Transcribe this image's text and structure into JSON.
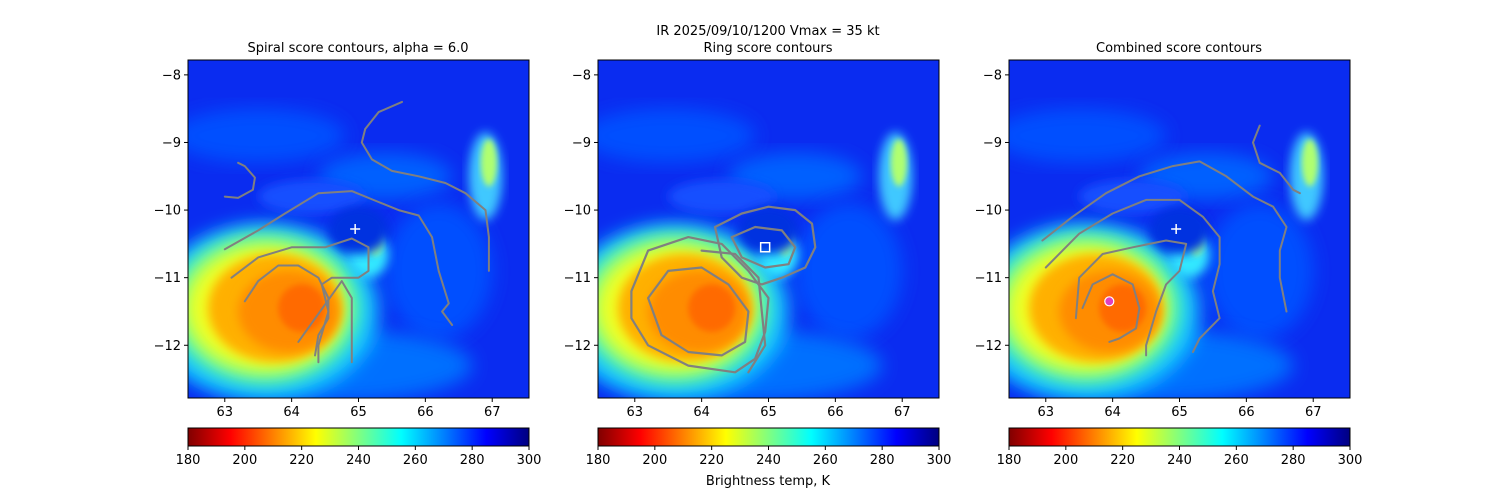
{
  "suptitle": {
    "line1": "IR  2025/09/10/1200    Vmax = 35 kt",
    "line2": "Ring score contours"
  },
  "colorbar": {
    "label": "Brightness temp, K",
    "ticks": [
      180,
      200,
      220,
      240,
      260,
      280,
      300
    ],
    "range": [
      180,
      300
    ],
    "colormap": "jet_r",
    "colors": [
      "#800000",
      "#ff0000",
      "#ff8000",
      "#ffff00",
      "#80ff80",
      "#00ffff",
      "#0080ff",
      "#0000ff",
      "#000080"
    ]
  },
  "contour_color": "#808080",
  "chart_data": [
    {
      "type": "heatmap",
      "title": "Spiral score contours, alpha =  6.0",
      "x_ticks": [
        63,
        64,
        65,
        66,
        67
      ],
      "y_ticks": [
        -8,
        -9,
        -10,
        -11,
        -12
      ],
      "xlim": [
        62.45,
        67.55
      ],
      "ylim": [
        -12.78,
        -7.78
      ],
      "marker": {
        "type": "cross",
        "x": 64.95,
        "y": -10.28,
        "color": "#ffffff"
      },
      "contours": [
        [
          [
            63.0,
            -9.8
          ],
          [
            63.2,
            -9.82
          ],
          [
            63.42,
            -9.7
          ],
          [
            63.45,
            -9.52
          ],
          [
            63.3,
            -9.35
          ],
          [
            63.2,
            -9.3
          ]
        ],
        [
          [
            63.0,
            -10.58
          ],
          [
            63.5,
            -10.3
          ],
          [
            63.9,
            -10.05
          ],
          [
            64.4,
            -9.75
          ],
          [
            64.9,
            -9.72
          ],
          [
            65.3,
            -9.88
          ],
          [
            65.6,
            -10.0
          ],
          [
            65.9,
            -10.08
          ],
          [
            66.1,
            -10.4
          ],
          [
            66.2,
            -10.9
          ],
          [
            66.35,
            -11.38
          ],
          [
            66.25,
            -11.5
          ],
          [
            66.4,
            -11.7
          ]
        ],
        [
          [
            63.1,
            -11.0
          ],
          [
            63.5,
            -10.7
          ],
          [
            64.0,
            -10.55
          ],
          [
            64.5,
            -10.55
          ],
          [
            64.9,
            -10.42
          ],
          [
            65.15,
            -10.55
          ],
          [
            65.15,
            -10.9
          ],
          [
            65.0,
            -11.0
          ],
          [
            64.6,
            -11.0
          ],
          [
            64.45,
            -11.1
          ],
          [
            64.55,
            -11.5
          ],
          [
            64.4,
            -12.0
          ],
          [
            64.4,
            -12.25
          ]
        ],
        [
          [
            63.3,
            -11.35
          ],
          [
            63.5,
            -11.05
          ],
          [
            63.8,
            -10.82
          ],
          [
            64.1,
            -10.82
          ],
          [
            64.4,
            -11.0
          ],
          [
            64.55,
            -11.3
          ],
          [
            64.55,
            -11.6
          ],
          [
            64.4,
            -11.85
          ],
          [
            64.35,
            -12.15
          ]
        ],
        [
          [
            65.65,
            -8.4
          ],
          [
            65.3,
            -8.55
          ],
          [
            65.1,
            -8.8
          ],
          [
            65.05,
            -9.0
          ],
          [
            65.2,
            -9.25
          ],
          [
            65.5,
            -9.42
          ],
          [
            65.9,
            -9.5
          ],
          [
            66.3,
            -9.6
          ],
          [
            66.6,
            -9.75
          ],
          [
            66.9,
            -10.0
          ],
          [
            66.95,
            -10.4
          ],
          [
            66.95,
            -10.9
          ]
        ],
        [
          [
            64.1,
            -11.95
          ],
          [
            64.75,
            -11.05
          ],
          [
            64.9,
            -11.3
          ],
          [
            64.9,
            -12.0
          ],
          [
            64.9,
            -12.25
          ]
        ]
      ]
    },
    {
      "type": "heatmap",
      "title": "",
      "x_ticks": [
        63,
        64,
        65,
        66,
        67
      ],
      "y_ticks": [
        -8,
        -9,
        -10,
        -11,
        -12
      ],
      "xlim": [
        62.45,
        67.55
      ],
      "ylim": [
        -12.78,
        -7.78
      ],
      "marker": {
        "type": "square",
        "x": 64.95,
        "y": -10.55,
        "color": "#ffffff"
      },
      "contours": [
        [
          [
            64.2,
            -10.25
          ],
          [
            64.6,
            -10.05
          ],
          [
            65.0,
            -9.95
          ],
          [
            65.4,
            -10.0
          ],
          [
            65.65,
            -10.2
          ],
          [
            65.7,
            -10.55
          ],
          [
            65.55,
            -10.85
          ],
          [
            65.2,
            -11.0
          ],
          [
            64.9,
            -11.1
          ],
          [
            64.6,
            -11.0
          ],
          [
            64.3,
            -10.7
          ],
          [
            64.2,
            -10.25
          ]
        ],
        [
          [
            64.45,
            -10.4
          ],
          [
            64.8,
            -10.25
          ],
          [
            65.2,
            -10.3
          ],
          [
            65.4,
            -10.55
          ],
          [
            65.3,
            -10.8
          ],
          [
            64.95,
            -10.85
          ],
          [
            64.6,
            -10.7
          ],
          [
            64.45,
            -10.4
          ]
        ],
        [
          [
            62.95,
            -11.2
          ],
          [
            63.2,
            -10.6
          ],
          [
            63.8,
            -10.4
          ],
          [
            64.3,
            -10.5
          ],
          [
            64.7,
            -10.9
          ],
          [
            65.0,
            -11.3
          ],
          [
            64.95,
            -11.8
          ],
          [
            64.8,
            -12.2
          ],
          [
            64.5,
            -12.4
          ],
          [
            63.8,
            -12.3
          ],
          [
            63.2,
            -12.0
          ],
          [
            62.95,
            -11.6
          ],
          [
            62.95,
            -11.2
          ]
        ],
        [
          [
            63.2,
            -11.3
          ],
          [
            63.5,
            -10.9
          ],
          [
            64.0,
            -10.85
          ],
          [
            64.4,
            -11.1
          ],
          [
            64.7,
            -11.5
          ],
          [
            64.65,
            -11.95
          ],
          [
            64.3,
            -12.15
          ],
          [
            63.8,
            -12.1
          ],
          [
            63.4,
            -11.85
          ],
          [
            63.2,
            -11.3
          ]
        ],
        [
          [
            64.0,
            -10.6
          ],
          [
            64.5,
            -10.65
          ],
          [
            64.85,
            -11.0
          ],
          [
            64.9,
            -11.5
          ],
          [
            64.95,
            -12.0
          ],
          [
            64.7,
            -12.4
          ]
        ]
      ]
    },
    {
      "type": "heatmap",
      "title": "Combined score contours",
      "x_ticks": [
        63,
        64,
        65,
        66,
        67
      ],
      "y_ticks": [
        -8,
        -9,
        -10,
        -11,
        -12
      ],
      "xlim": [
        62.45,
        67.55
      ],
      "ylim": [
        -12.78,
        -7.78
      ],
      "marker": {
        "type": "cross",
        "x": 64.95,
        "y": -10.28,
        "color": "#ffffff"
      },
      "marker2": {
        "type": "circle",
        "x": 63.95,
        "y": -11.35,
        "color": "#e040c0"
      },
      "contours": [
        [
          [
            66.2,
            -8.75
          ],
          [
            66.1,
            -9.0
          ],
          [
            66.2,
            -9.3
          ],
          [
            66.5,
            -9.45
          ],
          [
            66.7,
            -9.7
          ],
          [
            66.8,
            -9.75
          ]
        ],
        [
          [
            62.95,
            -10.45
          ],
          [
            63.4,
            -10.1
          ],
          [
            63.9,
            -9.75
          ],
          [
            64.4,
            -9.5
          ],
          [
            64.9,
            -9.35
          ],
          [
            65.3,
            -9.28
          ],
          [
            65.7,
            -9.5
          ],
          [
            66.1,
            -9.8
          ],
          [
            66.4,
            -9.95
          ],
          [
            66.6,
            -10.25
          ],
          [
            66.5,
            -10.6
          ],
          [
            66.5,
            -11.0
          ],
          [
            66.6,
            -11.5
          ]
        ],
        [
          [
            63.0,
            -10.85
          ],
          [
            63.5,
            -10.35
          ],
          [
            64.0,
            -10.05
          ],
          [
            64.5,
            -9.85
          ],
          [
            65.0,
            -9.85
          ],
          [
            65.35,
            -10.1
          ],
          [
            65.6,
            -10.4
          ],
          [
            65.6,
            -10.8
          ],
          [
            65.5,
            -11.2
          ],
          [
            65.6,
            -11.6
          ],
          [
            65.3,
            -11.9
          ],
          [
            65.2,
            -12.1
          ]
        ],
        [
          [
            63.45,
            -11.6
          ],
          [
            63.5,
            -11.0
          ],
          [
            63.85,
            -10.65
          ],
          [
            64.3,
            -10.55
          ],
          [
            64.8,
            -10.45
          ],
          [
            65.1,
            -10.5
          ],
          [
            65.0,
            -10.9
          ],
          [
            64.8,
            -11.1
          ],
          [
            64.65,
            -11.5
          ],
          [
            64.5,
            -12.0
          ],
          [
            64.5,
            -12.15
          ]
        ],
        [
          [
            63.55,
            -11.45
          ],
          [
            63.7,
            -11.1
          ],
          [
            64.0,
            -10.95
          ],
          [
            64.3,
            -11.1
          ],
          [
            64.4,
            -11.45
          ],
          [
            64.35,
            -11.75
          ],
          [
            64.1,
            -11.9
          ],
          [
            63.95,
            -11.95
          ]
        ]
      ]
    }
  ]
}
